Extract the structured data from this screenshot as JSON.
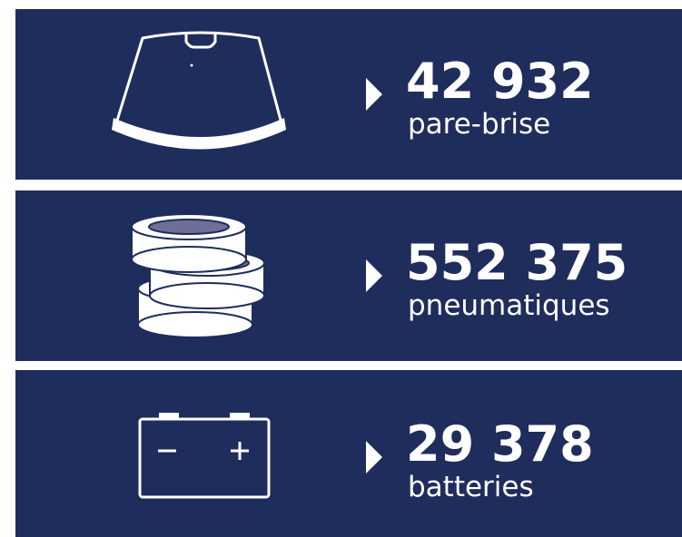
{
  "items": [
    {
      "value": "42 932",
      "label": "pare-brise"
    },
    {
      "value": "552 375",
      "label": "pneumatiques"
    },
    {
      "value": "29 378",
      "label": "batteries"
    }
  ]
}
